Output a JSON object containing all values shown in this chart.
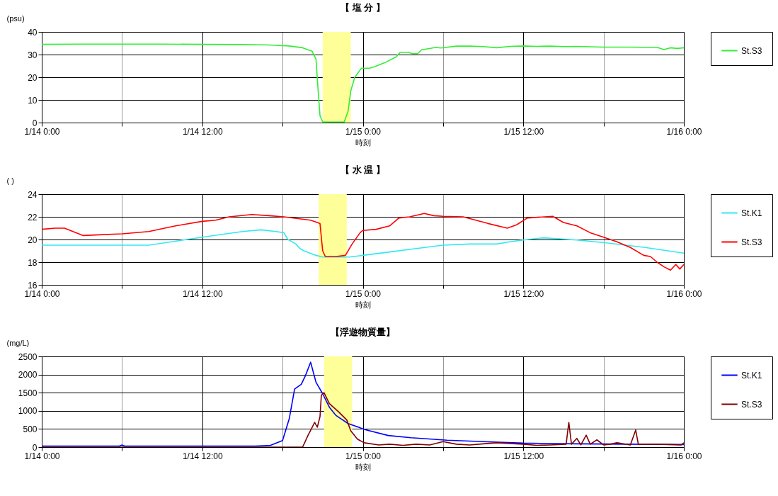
{
  "chart_data": [
    {
      "type": "line",
      "title": "【 塩 分 】",
      "xlabel": "時刻",
      "ylabel": "(psu)",
      "xlim": [
        "--01-14T00:00",
        "--01-16T00:00"
      ],
      "ylim": [
        0,
        40
      ],
      "yticks": [
        0,
        10,
        20,
        30,
        40
      ],
      "xticks": [
        {
          "value": "--01-14T00:00",
          "label": "1/14 0:00"
        },
        {
          "value": "--01-14T06:00",
          "label": null
        },
        {
          "value": "--01-14T12:00",
          "label": "1/14 12:00"
        },
        {
          "value": "--01-14T18:00",
          "label": null
        },
        {
          "value": "--01-15T00:00",
          "label": "1/15 0:00"
        },
        {
          "value": "--01-15T06:00",
          "label": null
        },
        {
          "value": "--01-15T12:00",
          "label": "1/15 12:00"
        },
        {
          "value": "--01-15T18:00",
          "label": null
        },
        {
          "value": "--01-16T00:00",
          "label": "1/16 0:00"
        }
      ],
      "grid": true,
      "legend": "right",
      "bands": [
        {
          "axis": "x",
          "from": "--01-14T21:00",
          "to": "--01-14T23:06",
          "color": "#ffff99"
        }
      ],
      "series": [
        {
          "name": "St.S3",
          "color": "#33ee33",
          "x": [
            "--01-14T00:00",
            "--01-14T03:00",
            "--01-14T06:00",
            "--01-14T09:00",
            "--01-14T12:00",
            "--01-14T15:00",
            "--01-14T17:00",
            "--01-14T18:30",
            "--01-14T19:30",
            "--01-14T20:12",
            "--01-14T20:30",
            "--01-14T20:39",
            "--01-14T20:48",
            "--01-14T21:00",
            "--01-14T22:00",
            "--01-14T22:36",
            "--01-14T22:54",
            "--01-14T23:06",
            "--01-14T23:24",
            "--01-14T23:54",
            "--01-15T00:30",
            "--01-15T00:54",
            "--01-15T01:36",
            "--01-15T02:30",
            "--01-15T02:48",
            "--01-15T03:24",
            "--01-15T03:42",
            "--01-15T04:06",
            "--01-15T04:24",
            "--01-15T04:54",
            "--01-15T05:30",
            "--01-15T05:48",
            "--01-15T07:00",
            "--01-15T08:00",
            "--01-15T09:00",
            "--01-15T10:00",
            "--01-15T11:00",
            "--01-15T12:00",
            "--01-15T13:00",
            "--01-15T14:00",
            "--01-15T15:00",
            "--01-15T16:00",
            "--01-15T18:00",
            "--01-15T20:00",
            "--01-15T21:00",
            "--01-15T22:00",
            "--01-15T22:30",
            "--01-15T23:00",
            "--01-15T23:30",
            "--01-16T00:00"
          ],
          "values": [
            34.5,
            34.6,
            34.6,
            34.6,
            34.5,
            34.4,
            34.2,
            33.8,
            33,
            31.5,
            28,
            15,
            3,
            0.3,
            0.2,
            0.2,
            5,
            14,
            20,
            24,
            24,
            24.7,
            26.3,
            29,
            31,
            31,
            30.4,
            30.4,
            32.1,
            32.6,
            33.2,
            32.9,
            33.7,
            33.7,
            33.5,
            33,
            33.6,
            33.8,
            33.6,
            33.7,
            33.5,
            33.6,
            33.3,
            33.3,
            33.2,
            33.2,
            32.2,
            33,
            32.7,
            33
          ]
        }
      ]
    },
    {
      "type": "line",
      "title": "【 水 温 】",
      "xlabel": "時刻",
      "ylabel": "(  )",
      "xlim": [
        "--01-14T00:00",
        "--01-16T00:00"
      ],
      "ylim": [
        16,
        24
      ],
      "yticks": [
        16,
        18,
        20,
        22,
        24
      ],
      "xticks": [
        {
          "value": "--01-14T00:00",
          "label": "1/14 0:00"
        },
        {
          "value": "--01-14T06:00",
          "label": null
        },
        {
          "value": "--01-14T12:00",
          "label": "1/14 12:00"
        },
        {
          "value": "--01-14T18:00",
          "label": null
        },
        {
          "value": "--01-15T00:00",
          "label": "1/15 0:00"
        },
        {
          "value": "--01-15T06:00",
          "label": null
        },
        {
          "value": "--01-15T12:00",
          "label": "1/15 12:00"
        },
        {
          "value": "--01-15T18:00",
          "label": null
        },
        {
          "value": "--01-16T00:00",
          "label": "1/16 0:00"
        }
      ],
      "grid": true,
      "legend": "right",
      "bands": [
        {
          "axis": "x",
          "from": "--01-14T20:42",
          "to": "--01-14T22:48",
          "color": "#ffff99"
        }
      ],
      "series": [
        {
          "name": "St.K1",
          "color": "#33e8f0",
          "x": [
            "--01-14T00:00",
            "--01-14T04:00",
            "--01-14T08:00",
            "--01-14T12:00",
            "--01-14T15:00",
            "--01-14T16:24",
            "--01-14T17:30",
            "--01-14T18:06",
            "--01-14T18:24",
            "--01-14T19:00",
            "--01-14T19:18",
            "--01-14T19:36",
            "--01-14T20:30",
            "--01-14T21:00",
            "--01-14T23:00",
            "--01-15T00:00",
            "--01-15T02:00",
            "--01-15T04:00",
            "--01-15T06:00",
            "--01-15T08:00",
            "--01-15T10:00",
            "--01-15T11:00",
            "--01-15T12:00",
            "--01-15T13:30",
            "--01-15T16:00",
            "--01-15T18:12",
            "--01-15T21:06",
            "--01-16T00:00"
          ],
          "values": [
            19.5,
            19.5,
            19.5,
            20.2,
            20.7,
            20.85,
            20.7,
            20.6,
            20.0,
            19.6,
            19.2,
            19.0,
            18.6,
            18.45,
            18.45,
            18.6,
            18.9,
            19.2,
            19.5,
            19.6,
            19.6,
            19.8,
            19.95,
            20.15,
            19.95,
            19.7,
            19.3,
            18.8
          ]
        },
        {
          "name": "St.S3",
          "color": "#ff0000",
          "x": [
            "--01-14T00:00",
            "--01-14T01:00",
            "--01-14T01:42",
            "--01-14T03:06",
            "--01-14T04:00",
            "--01-14T06:00",
            "--01-14T08:00",
            "--01-14T10:00",
            "--01-14T12:00",
            "--01-14T13:00",
            "--01-14T14:00",
            "--01-14T15:42",
            "--01-14T17:00",
            "--01-14T18:06",
            "--01-14T20:06",
            "--01-14T20:36",
            "--01-14T20:48",
            "--01-14T21:00",
            "--01-14T21:12",
            "--01-14T22:00",
            "--01-14T22:42",
            "--01-14T23:12",
            "--01-14T23:48",
            "--01-15T00:00",
            "--01-15T01:00",
            "--01-15T02:00",
            "--01-15T02:42",
            "--01-15T03:30",
            "--01-15T04:36",
            "--01-15T05:18",
            "--01-15T06:00",
            "--01-15T07:30",
            "--01-15T09:24",
            "--01-15T10:48",
            "--01-15T11:30",
            "--01-15T12:18",
            "--01-15T14:12",
            "--01-15T15:00",
            "--01-15T16:00",
            "--01-15T17:00",
            "--01-15T18:00",
            "--01-15T19:00",
            "--01-15T20:00",
            "--01-15T21:00",
            "--01-15T21:30",
            "--01-15T22:00",
            "--01-15T22:30",
            "--01-15T23:00",
            "--01-15T23:24",
            "--01-15T23:42",
            "--01-16T00:00"
          ],
          "values": [
            20.9,
            21.0,
            21.0,
            20.35,
            20.4,
            20.5,
            20.7,
            21.2,
            21.6,
            21.7,
            22.0,
            22.2,
            22.1,
            22.0,
            21.7,
            21.5,
            21.4,
            19,
            18.5,
            18.5,
            18.6,
            19.6,
            20.6,
            20.8,
            20.9,
            21.2,
            21.9,
            22,
            22.3,
            22.1,
            22.05,
            22,
            21.4,
            21.0,
            21.3,
            21.9,
            22.05,
            21.5,
            21.2,
            20.6,
            20.2,
            19.8,
            19.3,
            18.6,
            18.5,
            18.0,
            17.6,
            17.3,
            17.8,
            17.4,
            17.8
          ]
        }
      ]
    },
    {
      "type": "line",
      "title": "【浮遊物質量】",
      "xlabel": "時刻",
      "ylabel": "(mg/L)",
      "xlim": [
        "--01-14T00:00",
        "--01-16T00:00"
      ],
      "ylim": [
        0,
        2500
      ],
      "yticks": [
        0,
        500,
        1000,
        1500,
        2000,
        2500
      ],
      "xticks": [
        {
          "value": "--01-14T00:00",
          "label": "1/14 0:00"
        },
        {
          "value": "--01-14T06:00",
          "label": null
        },
        {
          "value": "--01-14T12:00",
          "label": "1/14 12:00"
        },
        {
          "value": "--01-14T18:00",
          "label": null
        },
        {
          "value": "--01-15T00:00",
          "label": "1/15 0:00"
        },
        {
          "value": "--01-15T06:00",
          "label": null
        },
        {
          "value": "--01-15T12:00",
          "label": "1/15 12:00"
        },
        {
          "value": "--01-15T18:00",
          "label": null
        },
        {
          "value": "--01-16T00:00",
          "label": "1/16 0:00"
        }
      ],
      "grid": true,
      "legend": "right",
      "bands": [
        {
          "axis": "x",
          "from": "--01-14T21:06",
          "to": "--01-14T23:12",
          "color": "#ffff99"
        }
      ],
      "series": [
        {
          "name": "St.K1",
          "color": "#0000ff",
          "x": [
            "--01-14T00:00",
            "--01-14T05:48",
            "--01-14T06:00",
            "--01-14T06:12",
            "--01-14T12:00",
            "--01-14T16:00",
            "--01-14T17:06",
            "--01-14T18:00",
            "--01-14T18:30",
            "--01-14T18:54",
            "--01-14T19:24",
            "--01-14T19:42",
            "--01-14T20:06",
            "--01-14T20:30",
            "--01-14T21:00",
            "--01-14T21:30",
            "--01-14T22:00",
            "--01-14T22:54",
            "--01-15T00:12",
            "--01-15T01:54",
            "--01-15T03:36",
            "--01-15T06:18",
            "--01-15T09:00",
            "--01-15T12:00",
            "--01-15T16:00",
            "--01-15T20:00",
            "--01-16T00:00"
          ],
          "values": [
            30,
            30,
            60,
            30,
            30,
            30,
            50,
            180,
            780,
            1600,
            1730,
            1960,
            2340,
            1790,
            1470,
            1100,
            870,
            650,
            480,
            320,
            260,
            190,
            150,
            110,
            90,
            80,
            70
          ]
        },
        {
          "name": "St.S3",
          "color": "#800000",
          "x": [
            "--01-14T00:00",
            "--01-14T19:30",
            "--01-14T19:54",
            "--01-14T20:24",
            "--01-14T20:36",
            "--01-14T20:48",
            "--01-14T20:54",
            "--01-14T21:06",
            "--01-14T21:30",
            "--01-14T22:12",
            "--01-14T22:48",
            "--01-14T23:06",
            "--01-14T23:36",
            "--01-15T00:06",
            "--01-15T01:12",
            "--01-15T02:00",
            "--01-15T03:00",
            "--01-15T04:00",
            "--01-15T05:00",
            "--01-15T06:00",
            "--01-15T07:00",
            "--01-15T08:00",
            "--01-15T09:00",
            "--01-15T10:00",
            "--01-15T11:00",
            "--01-15T12:00",
            "--01-15T13:00",
            "--01-15T14:00",
            "--01-15T15:12",
            "--01-15T15:24",
            "--01-15T15:36",
            "--01-15T16:00",
            "--01-15T16:18",
            "--01-15T16:42",
            "--01-15T17:00",
            "--01-15T17:30",
            "--01-15T18:00",
            "--01-15T18:30",
            "--01-15T19:00",
            "--01-15T20:00",
            "--01-15T20:24",
            "--01-15T20:36",
            "--01-15T21:00",
            "--01-15T22:00",
            "--01-15T23:00",
            "--01-15T23:48",
            "--01-16T00:00"
          ],
          "values": [
            0,
            0,
            320,
            680,
            550,
            840,
            1430,
            1500,
            1200,
            970,
            750,
            450,
            220,
            120,
            60,
            80,
            50,
            80,
            60,
            150,
            80,
            60,
            90,
            120,
            100,
            80,
            50,
            60,
            80,
            680,
            80,
            240,
            60,
            330,
            80,
            200,
            60,
            80,
            120,
            60,
            470,
            70,
            80,
            80,
            70,
            60,
            120
          ]
        }
      ]
    }
  ]
}
